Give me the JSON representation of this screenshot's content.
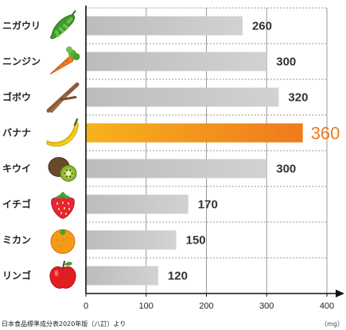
{
  "chart_data": {
    "type": "bar",
    "orientation": "horizontal",
    "categories": [
      "ニガウリ",
      "ニンジン",
      "ゴボウ",
      "バナナ",
      "キウイ",
      "イチゴ",
      "ミカン",
      "リンゴ"
    ],
    "values": [
      260,
      300,
      320,
      360,
      300,
      170,
      150,
      120
    ],
    "value_labels": [
      "260",
      "300",
      "320",
      "360",
      "300",
      "170",
      "150",
      "120"
    ],
    "icons": [
      "bitter-gourd-icon",
      "carrot-icon",
      "burdock-icon",
      "banana-icon",
      "kiwi-icon",
      "strawberry-icon",
      "mandarin-icon",
      "apple-icon"
    ],
    "highlight_index": 3,
    "xlim": [
      0,
      400
    ],
    "xticks": [
      0,
      100,
      200,
      300,
      400
    ],
    "unit": "（mg）",
    "source": "日本食品標準成分表2020年版（八訂）より",
    "grid": true,
    "colors": {
      "bar": "#c8c8c8",
      "highlight_start": "#f6b21d",
      "highlight_end": "#f07a1c",
      "highlight_text": "#ee7a1c",
      "grid": "#9a9a9a"
    }
  }
}
